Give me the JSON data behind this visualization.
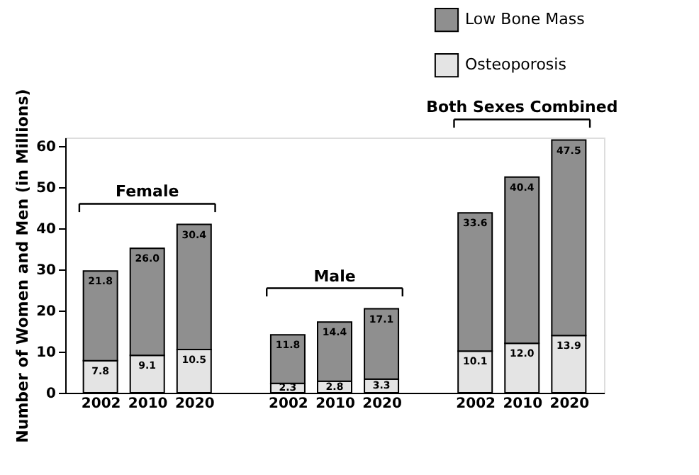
{
  "chart_data": {
    "type": "bar",
    "stacked": true,
    "ylabel": "Number of Women and Men (in Millions)",
    "categories": [
      "2002",
      "2010",
      "2020",
      null,
      "2002",
      "2010",
      "2020",
      null,
      "2002",
      "2010",
      "2020"
    ],
    "series": [
      {
        "name": "Osteoporosis",
        "color": "#e4e4e4",
        "values": [
          7.8,
          9.1,
          10.5,
          null,
          2.3,
          2.8,
          3.3,
          null,
          10.1,
          12.0,
          13.9
        ],
        "value_labels": [
          "7.8",
          "9.1",
          "10.5",
          null,
          "2.3",
          "2.8",
          "3.3",
          null,
          "10.1",
          "12.0",
          "13.9"
        ]
      },
      {
        "name": "Low Bone Mass",
        "color": "#8f8f8f",
        "values": [
          21.8,
          26.0,
          30.4,
          null,
          11.8,
          14.4,
          17.1,
          null,
          33.6,
          40.4,
          47.5
        ],
        "value_labels": [
          "21.8",
          "26.0",
          "30.4",
          null,
          "11.8",
          "14.4",
          "17.1",
          null,
          "33.6",
          "40.4",
          "47.5"
        ]
      }
    ],
    "annotations": [
      "Female",
      "Male",
      "Both Sexes Combined"
    ],
    "ylim": [
      0,
      62
    ],
    "yticks": [
      0,
      10,
      20,
      30,
      40,
      50,
      60
    ],
    "grid": false,
    "legend": "top right"
  }
}
